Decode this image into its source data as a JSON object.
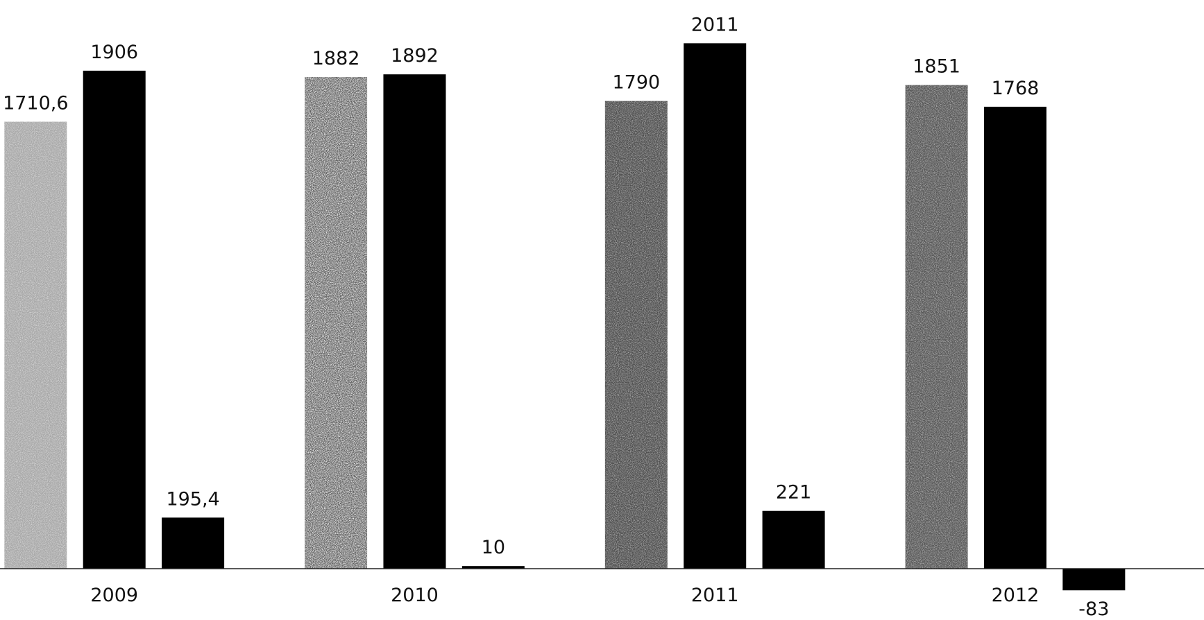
{
  "chart_data": {
    "type": "bar",
    "title": "",
    "xlabel": "",
    "ylabel": "",
    "categories": [
      "2009",
      "2010",
      "2011",
      "2012"
    ],
    "series": [
      {
        "values": [
          1710.6,
          1882,
          1790,
          1851
        ],
        "labels": [
          "1710,6",
          "1882",
          "1790",
          "1851"
        ],
        "color": "#5a5a5a",
        "pattern": "noise"
      },
      {
        "values": [
          1906,
          1892,
          2011,
          1768
        ],
        "labels": [
          "1906",
          "1892",
          "2011",
          "1768"
        ],
        "color": "#000000",
        "pattern": "solid"
      },
      {
        "values": [
          195.4,
          10,
          221,
          -83
        ],
        "labels": [
          "195,4",
          "10",
          "221",
          "-83"
        ],
        "color": "#000000",
        "pattern": "solid"
      }
    ],
    "ylim": [
      -170,
      2150
    ],
    "grid": false,
    "legend": "none"
  }
}
